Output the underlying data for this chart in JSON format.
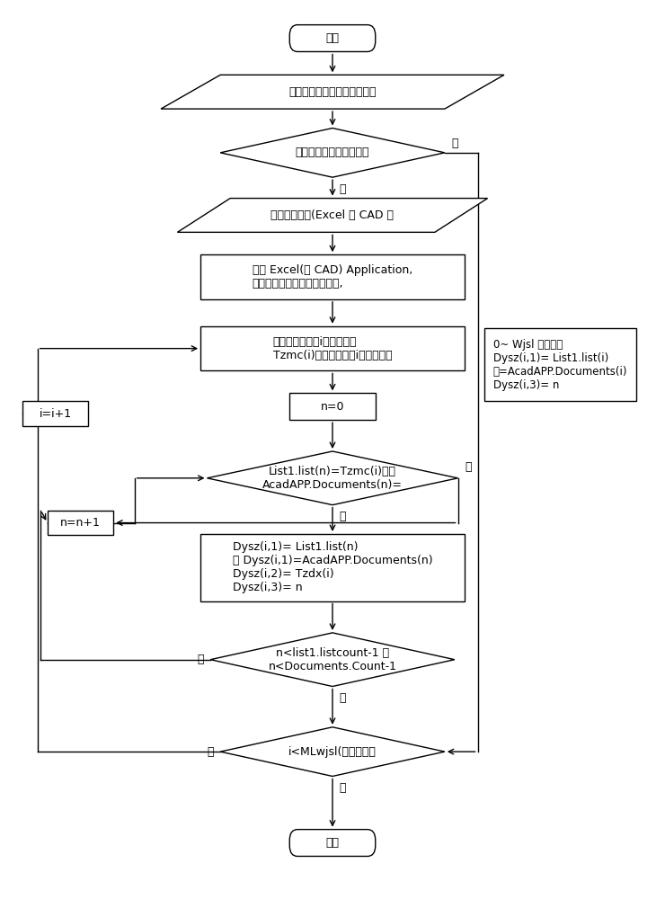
{
  "bg_color": "#ffffff",
  "line_color": "#000000",
  "text_color": "#000000",
  "font_size": 9,
  "nodes": {
    "start_label": "开始",
    "input1_label": "选择打印对象、指定顺序方式",
    "diamond1_label": "是否按图样目录顺序打印",
    "input2_label": "指定图样目录(Excel 或 CAD 格",
    "process1_label": "连接 Excel(或 CAD) Application,\n读取目录地址并打开目录文件,",
    "process2_label": "读取目录名称列i行图纸名称\nTzmc(i)，图纸大小列i行图纸大小",
    "n0_label": "n=0",
    "diamond2_label": "List1.list(n)=Tzmc(i)或者\nAcadAPP.Documents(n)=",
    "process4_label": "Dysz(i,1)= List1.list(n)\n或 Dysz(i,1)=AcadAPP.Documents(n)\nDysz(i,2)= Tzdx(i)\nDysz(i,3)= n",
    "diamond3_label": "n<list1.listcount-1 或\nn<Documents.Count-1",
    "diamond4_label": "i<MLwjsl(目录文件数",
    "end_label": "结束",
    "iinc_label": "i=i+1",
    "ninc_label": "n=n+1",
    "sidebox_label": "0~ Wjsl 依次赋值\nDysz(i,1)= List1.list(i)\n或=AcadAPP.Documents(i)\nDysz(i,3)= n"
  }
}
